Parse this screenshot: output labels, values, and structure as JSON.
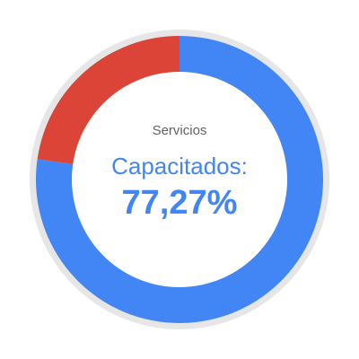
{
  "chart_data": {
    "type": "pie",
    "style": "donut",
    "title": "Servicios",
    "center_label": "Capacitados:",
    "center_value": "77,27%",
    "slices": [
      {
        "value": 77.27,
        "color": "#4285f4"
      },
      {
        "value": 22.73,
        "color": "#db4437"
      }
    ],
    "ring_track_color": "#e6e6e6"
  }
}
